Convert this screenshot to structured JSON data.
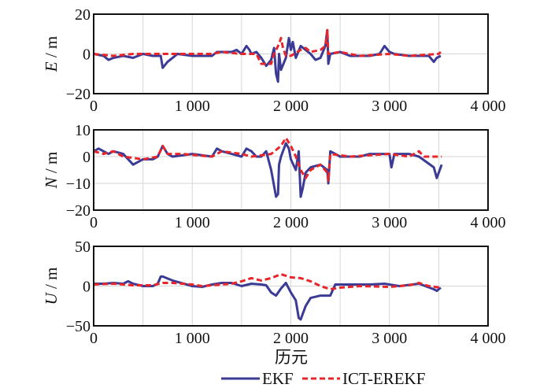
{
  "chart_data": [
    {
      "type": "line",
      "ylabel_var": "E",
      "ylabel_unit": " / m",
      "xlim": [
        0,
        4000
      ],
      "ylim": [
        -20,
        20
      ],
      "xticks": [
        0,
        1000,
        2000,
        3000,
        4000
      ],
      "xtick_labels": [
        "0",
        "1 000",
        "2 000",
        "3 000",
        "4 000"
      ],
      "yticks": [
        20,
        0,
        -20
      ],
      "ytick_labels": [
        "20",
        "0",
        "−20"
      ],
      "grid": true,
      "series": [
        {
          "name": "EKF",
          "color": "#3b3b96",
          "dash": false,
          "x": [
            0,
            100,
            150,
            200,
            300,
            400,
            500,
            600,
            680,
            700,
            750,
            850,
            1000,
            1200,
            1250,
            1300,
            1400,
            1450,
            1500,
            1550,
            1580,
            1600,
            1650,
            1700,
            1750,
            1800,
            1830,
            1850,
            1870,
            1880,
            1900,
            1950,
            1980,
            2000,
            2020,
            2050,
            2100,
            2150,
            2200,
            2250,
            2300,
            2350,
            2370,
            2380,
            2400,
            2500,
            2600,
            2800,
            2900,
            2950,
            3000,
            3050,
            3200,
            3400,
            3450,
            3480,
            3520
          ],
          "y": [
            0,
            -1,
            -3,
            -2,
            -1,
            -2,
            0,
            -1,
            -1,
            -7,
            -4,
            0,
            -1,
            -1,
            1,
            1,
            1,
            2,
            0,
            4,
            2,
            0,
            1,
            -2,
            -6,
            -3,
            3,
            -10,
            -14,
            0,
            -8,
            -2,
            8,
            2,
            6,
            -2,
            4,
            2,
            0,
            -3,
            -2,
            4,
            12,
            -5,
            0,
            1,
            -1,
            -1,
            0,
            4,
            1,
            0,
            -1,
            -1,
            -4,
            -2,
            -1
          ]
        },
        {
          "name": "ICT-EREKF",
          "color": "#e8262a",
          "dash": true,
          "x": [
            0,
            200,
            400,
            700,
            900,
            1200,
            1300,
            1500,
            1650,
            1700,
            1800,
            1830,
            1880,
            1900,
            1920,
            1950,
            2000,
            2100,
            2150,
            2200,
            2300,
            2350,
            2370,
            2380,
            2500,
            2700,
            3000,
            3200,
            3500,
            3520
          ],
          "y": [
            0,
            -1,
            0,
            0,
            0,
            0,
            1,
            0,
            0,
            -5,
            -5,
            0,
            5,
            8,
            3,
            -1,
            -1,
            2,
            3,
            1,
            2,
            4,
            12,
            0,
            1,
            -1,
            0,
            -1,
            0,
            1
          ]
        }
      ]
    },
    {
      "type": "line",
      "ylabel_var": "N",
      "ylabel_unit": " / m",
      "xlim": [
        0,
        4000
      ],
      "ylim": [
        -20,
        10
      ],
      "xticks": [
        0,
        1000,
        2000,
        3000,
        4000
      ],
      "xtick_labels": [
        "0",
        "1 000",
        "2 000",
        "3 000",
        "4 000"
      ],
      "yticks": [
        10,
        0,
        -10,
        -20
      ],
      "ytick_labels": [
        "10",
        "0",
        "−10",
        "−20"
      ],
      "grid": true,
      "series": [
        {
          "name": "EKF",
          "color": "#3b3b96",
          "dash": false,
          "x": [
            0,
            50,
            100,
            150,
            200,
            300,
            400,
            500,
            600,
            650,
            700,
            750,
            800,
            1000,
            1200,
            1250,
            1300,
            1400,
            1500,
            1550,
            1600,
            1650,
            1700,
            1750,
            1800,
            1850,
            1870,
            1880,
            1900,
            1950,
            1980,
            2000,
            2050,
            2080,
            2100,
            2120,
            2150,
            2200,
            2300,
            2370,
            2380,
            2400,
            2450,
            2500,
            2700,
            2800,
            3000,
            3020,
            3050,
            3200,
            3300,
            3450,
            3480,
            3500,
            3530
          ],
          "y": [
            2,
            3,
            2,
            1,
            2,
            1,
            -3,
            -1,
            -1,
            0,
            4,
            1,
            0,
            1,
            0,
            3,
            2,
            1,
            0,
            3,
            2,
            0,
            0,
            2,
            -5,
            -15,
            -14,
            -3,
            0,
            5,
            3,
            -1,
            -5,
            2,
            -15,
            -12,
            -6,
            -4,
            -3,
            -5,
            -10,
            2,
            1,
            0,
            0,
            1,
            1,
            -4,
            1,
            1,
            0,
            -4,
            -8,
            -6,
            -3
          ]
        },
        {
          "name": "ICT-EREKF",
          "color": "#e8262a",
          "dash": true,
          "x": [
            0,
            100,
            200,
            300,
            500,
            650,
            700,
            750,
            900,
            1200,
            1300,
            1500,
            1600,
            1800,
            1900,
            1950,
            2000,
            2050,
            2100,
            2150,
            2200,
            2300,
            2370,
            2380,
            2400,
            2600,
            3000,
            3200,
            3300,
            3350,
            3500,
            3530
          ],
          "y": [
            2,
            1,
            2,
            0,
            -1,
            0,
            4,
            1,
            1,
            0,
            2,
            1,
            0,
            1,
            4,
            7,
            4,
            0,
            -5,
            -8,
            -5,
            -3,
            -6,
            -9,
            1,
            0,
            1,
            0,
            2,
            0,
            0,
            0
          ]
        }
      ]
    },
    {
      "type": "line",
      "ylabel_var": "U",
      "ylabel_unit": " / m",
      "xlabel": "历元",
      "xlim": [
        0,
        4000
      ],
      "ylim": [
        -50,
        50
      ],
      "xticks": [
        0,
        1000,
        2000,
        3000,
        4000
      ],
      "xtick_labels": [
        "0",
        "1 000",
        "2 000",
        "3 000",
        "4 000"
      ],
      "yticks": [
        50,
        0,
        -50
      ],
      "ytick_labels": [
        "50",
        "0",
        "−50"
      ],
      "grid": true,
      "series": [
        {
          "name": "EKF",
          "color": "#3b3b96",
          "dash": false,
          "x": [
            0,
            100,
            200,
            300,
            350,
            400,
            500,
            600,
            650,
            680,
            700,
            800,
            1000,
            1100,
            1200,
            1300,
            1400,
            1500,
            1600,
            1700,
            1750,
            1800,
            1850,
            1900,
            1950,
            2000,
            2050,
            2080,
            2100,
            2150,
            2200,
            2300,
            2400,
            2450,
            2600,
            2800,
            2950,
            3100,
            3300,
            3450,
            3480,
            3520
          ],
          "y": [
            3,
            3,
            4,
            3,
            6,
            3,
            0,
            0,
            3,
            12,
            12,
            7,
            0,
            -1,
            2,
            4,
            4,
            0,
            3,
            2,
            1,
            -8,
            -12,
            -3,
            4,
            -8,
            -18,
            -40,
            -42,
            -25,
            -15,
            -12,
            -12,
            2,
            2,
            2,
            3,
            0,
            3,
            -4,
            -6,
            -2
          ]
        },
        {
          "name": "ICT-EREKF",
          "color": "#e8262a",
          "dash": true,
          "x": [
            0,
            200,
            400,
            600,
            700,
            800,
            1000,
            1100,
            1200,
            1400,
            1500,
            1600,
            1700,
            1800,
            1900,
            2000,
            2100,
            2200,
            2300,
            2400,
            2500,
            2700,
            3000,
            3200,
            3300,
            3400,
            3520
          ],
          "y": [
            2,
            3,
            1,
            1,
            4,
            4,
            2,
            0,
            1,
            3,
            6,
            10,
            7,
            10,
            15,
            11,
            10,
            6,
            0,
            -4,
            -2,
            0,
            -1,
            1,
            4,
            0,
            -2
          ]
        }
      ]
    }
  ],
  "legend": {
    "placement": "bottom-center",
    "items": [
      "EKF",
      "ICT-EREKF"
    ]
  }
}
